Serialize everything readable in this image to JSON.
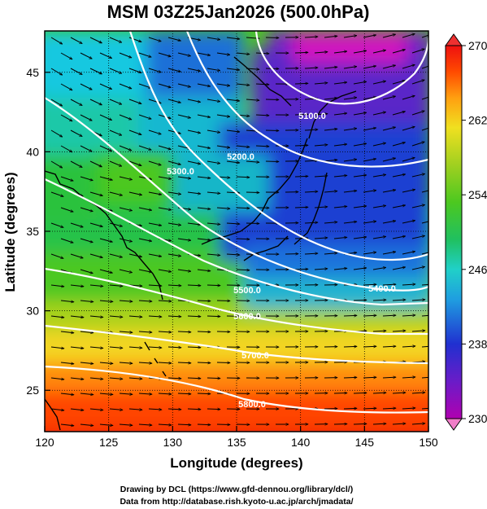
{
  "chart_data": {
    "type": "heatmap",
    "title": "MSM 03Z25Jan2026 (500.0hPa)",
    "xlabel": "Longitude (degrees)",
    "ylabel": "Latitude  (degrees)",
    "xlim": [
      120,
      150
    ],
    "ylim": [
      22.4,
      47.6
    ],
    "x_ticks": [
      "120",
      "125",
      "130",
      "135",
      "140",
      "145",
      "150"
    ],
    "y_ticks": [
      "25",
      "30",
      "35",
      "40",
      "45"
    ],
    "x_tick_values": [
      120,
      125,
      130,
      135,
      140,
      145,
      150
    ],
    "y_tick_values": [
      25,
      30,
      35,
      40,
      45
    ],
    "field": "temperature (K), shaded",
    "colorbar": {
      "min": 230,
      "max": 270,
      "tick_labels": [
        "230",
        "238",
        "246",
        "254",
        "262",
        "270"
      ],
      "tick_values": [
        230,
        238,
        246,
        254,
        262,
        270
      ],
      "colors": [
        "#b000b0",
        "#6a1cc8",
        "#2030d0",
        "#1f9ee0",
        "#20d0c8",
        "#20c060",
        "#4cc820",
        "#a0d020",
        "#f0e020",
        "#ff9f10",
        "#ff4a00",
        "#ee1010"
      ]
    },
    "contours": {
      "quantity": "geopotential height (m)",
      "labels": [
        "5100.0",
        "5200.0",
        "5300.0",
        "5400.0",
        "5500.0",
        "5600.0",
        "5700.0",
        "5800.0"
      ],
      "levels": [
        5100,
        5200,
        5300,
        5400,
        5500,
        5600,
        5700,
        5800
      ],
      "color": "#ffffff"
    },
    "vectors": {
      "quantity": "wind",
      "color": "#000000",
      "direction": "westerly, curving around trough over northern Japan"
    },
    "annotations": [
      "Drawing by DCL (https://www.gfd-dennou.org/library/dcl/)",
      "Data from http://database.rish.kyoto-u.ac.jp/arch/jmadata/"
    ]
  }
}
